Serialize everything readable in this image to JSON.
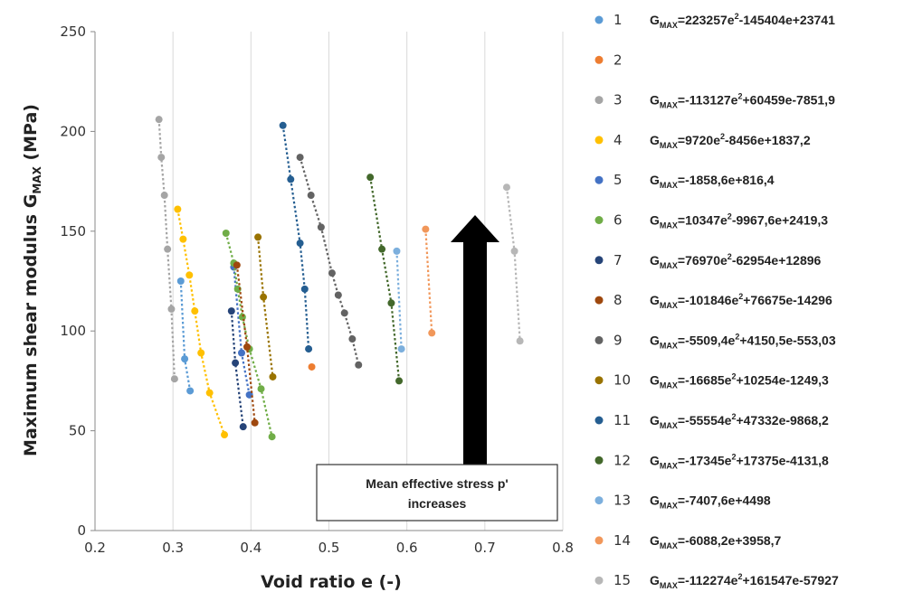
{
  "chart_data": {
    "type": "scatter",
    "xlabel": "Void ratio e (-)",
    "ylabel": "Maximum shear modulus G",
    "ylabel_sub": "MAX",
    "ylabel_unit": " (MPa)",
    "xlim": [
      0.2,
      0.8
    ],
    "ylim": [
      0,
      250
    ],
    "x_ticks": [
      "0.2",
      "0.3",
      "0.4",
      "0.5",
      "0.6",
      "0.7",
      "0.8"
    ],
    "y_ticks": [
      "0",
      "50",
      "100",
      "150",
      "200",
      "250"
    ],
    "grid": "vertical",
    "legend_position": "right",
    "annotation": {
      "line1": "Mean effective stress p'",
      "line2": "increases"
    },
    "series": [
      {
        "name": "1",
        "color": "#5b9bd5",
        "eq": [
          "223257e",
          "2",
          "-145404e+23741"
        ],
        "x": [
          0.31,
          0.315,
          0.322
        ],
        "y": [
          125,
          86,
          70
        ]
      },
      {
        "name": "2",
        "color": "#ed7d31",
        "eq": null,
        "x": [
          0.478
        ],
        "y": [
          82
        ]
      },
      {
        "name": "3",
        "color": "#a5a5a5",
        "eq": [
          "-113127e",
          "2",
          "+60459e-7851,9"
        ],
        "x": [
          0.282,
          0.285,
          0.289,
          0.293,
          0.298,
          0.302
        ],
        "y": [
          206,
          187,
          168,
          141,
          111,
          76
        ]
      },
      {
        "name": "4",
        "color": "#ffc000",
        "eq": [
          "9720e",
          "2",
          "-8456e+1837,2"
        ],
        "x": [
          0.306,
          0.313,
          0.321,
          0.328,
          0.336,
          0.347,
          0.366
        ],
        "y": [
          161,
          146,
          128,
          110,
          89,
          69,
          48
        ]
      },
      {
        "name": "5",
        "color": "#4472c4",
        "eq": [
          "-1858,6e+816,4"
        ],
        "x": [
          0.378,
          0.388,
          0.398
        ],
        "y": [
          132,
          89,
          68
        ]
      },
      {
        "name": "6",
        "color": "#70ad47",
        "eq": [
          "10347e",
          "2",
          "-9967,6e+2419,3"
        ],
        "x": [
          0.368,
          0.378,
          0.383,
          0.389,
          0.398,
          0.413,
          0.427
        ],
        "y": [
          149,
          134,
          121,
          107,
          91,
          71,
          47
        ]
      },
      {
        "name": "7",
        "color": "#264478",
        "eq": [
          "76970e",
          "2",
          "-62954e+12896"
        ],
        "x": [
          0.375,
          0.38,
          0.39
        ],
        "y": [
          110,
          84,
          52
        ]
      },
      {
        "name": "8",
        "color": "#9e480e",
        "eq": [
          "-101846e",
          "2",
          "+76675e-14296"
        ],
        "x": [
          0.382,
          0.395,
          0.405
        ],
        "y": [
          133,
          92,
          54
        ]
      },
      {
        "name": "9",
        "color": "#636363",
        "eq": [
          "-5509,4e",
          "2",
          "+4150,5e-553,03"
        ],
        "x": [
          0.463,
          0.477,
          0.49,
          0.504,
          0.512,
          0.52,
          0.53,
          0.538
        ],
        "y": [
          187,
          168,
          152,
          129,
          118,
          109,
          96,
          83
        ]
      },
      {
        "name": "10",
        "color": "#997300",
        "eq": [
          "-16685e",
          "2",
          "+10254e-1249,3"
        ],
        "x": [
          0.409,
          0.416,
          0.428
        ],
        "y": [
          147,
          117,
          77
        ]
      },
      {
        "name": "11",
        "color": "#255e91",
        "eq": [
          "-55554e",
          "2",
          "+47332e-9868,2"
        ],
        "x": [
          0.441,
          0.451,
          0.463,
          0.469,
          0.474
        ],
        "y": [
          203,
          176,
          144,
          121,
          91
        ]
      },
      {
        "name": "12",
        "color": "#43682b",
        "eq": [
          "-17345e",
          "2",
          "+17375e-4131,8"
        ],
        "x": [
          0.553,
          0.568,
          0.58,
          0.59
        ],
        "y": [
          177,
          141,
          114,
          75
        ]
      },
      {
        "name": "13",
        "color": "#7cafdd",
        "eq": [
          "-7407,6e+4498"
        ],
        "x": [
          0.587,
          0.593
        ],
        "y": [
          140,
          91
        ]
      },
      {
        "name": "14",
        "color": "#f1975a",
        "eq": [
          "-6088,2e+3958,7"
        ],
        "x": [
          0.624,
          0.632
        ],
        "y": [
          151,
          99
        ]
      },
      {
        "name": "15",
        "color": "#b7b7b7",
        "eq": [
          "-112274e",
          "2",
          "+161547e-57927"
        ],
        "x": [
          0.728,
          0.738,
          0.745
        ],
        "y": [
          172,
          140,
          95
        ]
      }
    ]
  }
}
